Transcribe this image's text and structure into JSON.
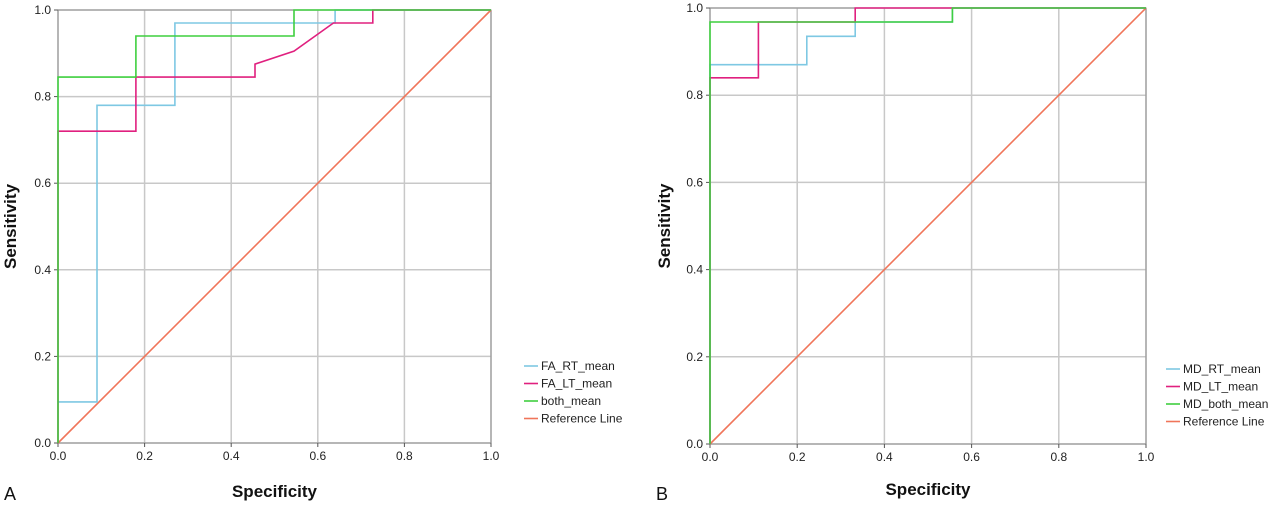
{
  "panels": [
    {
      "panel_label": "A",
      "chart_data": {
        "type": "line",
        "title": "",
        "xlabel": "Specificity",
        "ylabel": "Sensitivity",
        "xlim": [
          0,
          1
        ],
        "ylim": [
          0,
          1
        ],
        "xticks": [
          "0.0",
          "0.2",
          "0.4",
          "0.6",
          "0.8",
          "1.0"
        ],
        "yticks": [
          "0.0",
          "0.2",
          "0.4",
          "0.6",
          "0.8",
          "1.0"
        ],
        "grid": true,
        "legend_position": "bottom-right",
        "series": [
          {
            "name": "FA_RT_mean",
            "color": "#7ec8e3",
            "x": [
              0,
              0.09,
              0.09,
              0.27,
              0.27,
              0.64,
              0.64,
              1.0
            ],
            "y": [
              0.095,
              0.095,
              0.78,
              0.78,
              0.97,
              0.97,
              1.0,
              1.0
            ]
          },
          {
            "name": "FA_LT_mean",
            "color": "#e0207f",
            "x": [
              0,
              0,
              0.18,
              0.18,
              0.455,
              0.455,
              0.545,
              0.636,
              0.636,
              0.727,
              0.727,
              1.0
            ],
            "y": [
              0,
              0.72,
              0.72,
              0.845,
              0.845,
              0.875,
              0.905,
              0.97,
              0.97,
              0.97,
              1.0,
              1.0
            ]
          },
          {
            "name": "both_mean",
            "color": "#3fcf3f",
            "x": [
              0,
              0,
              0.18,
              0.18,
              0.545,
              0.545,
              1.0
            ],
            "y": [
              0,
              0.845,
              0.845,
              0.94,
              0.94,
              1.0,
              1.0
            ]
          },
          {
            "name": "Reference Line",
            "color": "#f0755a",
            "x": [
              0,
              1
            ],
            "y": [
              0,
              1
            ]
          }
        ]
      }
    },
    {
      "panel_label": "B",
      "chart_data": {
        "type": "line",
        "title": "",
        "xlabel": "Specificity",
        "ylabel": "Sensitivity",
        "xlim": [
          0,
          1
        ],
        "ylim": [
          0,
          1
        ],
        "xticks": [
          "0.0",
          "0.2",
          "0.4",
          "0.6",
          "0.8",
          "1.0"
        ],
        "yticks": [
          "0.0",
          "0.2",
          "0.4",
          "0.6",
          "0.8",
          "1.0"
        ],
        "grid": true,
        "legend_position": "bottom-right",
        "series": [
          {
            "name": "MD_RT_mean",
            "color": "#7ec8e3",
            "x": [
              0,
              0,
              0.222,
              0.222,
              0.333,
              0.333,
              0.556,
              0.556,
              1.0
            ],
            "y": [
              0,
              0.87,
              0.87,
              0.935,
              0.935,
              0.968,
              0.968,
              1.0,
              1.0
            ]
          },
          {
            "name": "MD_LT_mean",
            "color": "#e0207f",
            "x": [
              0,
              0,
              0.111,
              0.111,
              0.333,
              0.333,
              1.0
            ],
            "y": [
              0,
              0.84,
              0.84,
              0.968,
              0.968,
              1.0,
              1.0
            ]
          },
          {
            "name": "MD_both_mean",
            "color": "#3fcf3f",
            "x": [
              0,
              0,
              0.556,
              0.556,
              1.0
            ],
            "y": [
              0,
              0.968,
              0.968,
              1.0,
              1.0
            ]
          },
          {
            "name": "Reference Line",
            "color": "#f0755a",
            "x": [
              0,
              1
            ],
            "y": [
              0,
              1
            ]
          }
        ]
      }
    }
  ]
}
